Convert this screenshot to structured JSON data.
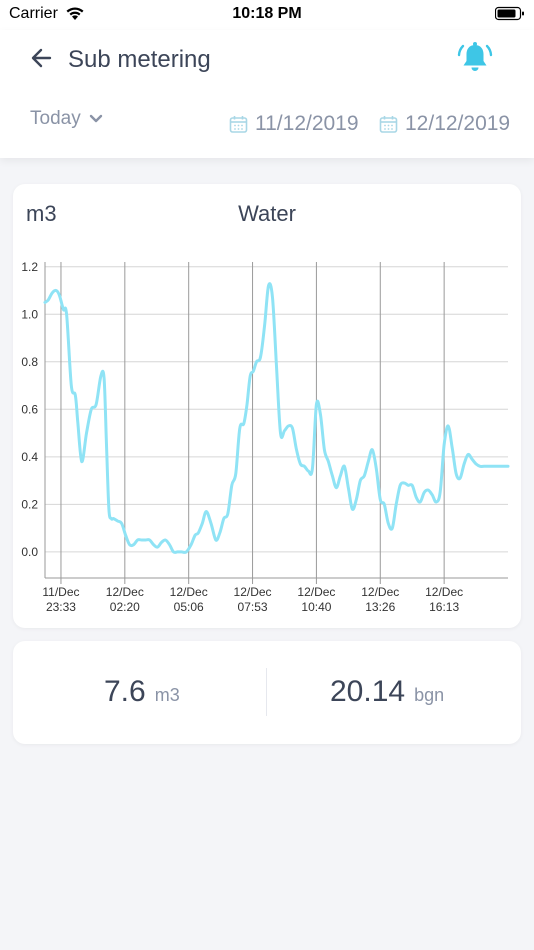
{
  "status_bar": {
    "carrier": "Carrier",
    "time": "10:18 PM"
  },
  "header": {
    "title": "Sub metering",
    "period": "Today",
    "date_from": "11/12/2019",
    "date_to": "12/12/2019",
    "accent_color": "#3ec6e6"
  },
  "chart_card": {
    "unit_label": "m3",
    "title": "Water"
  },
  "chart_data": {
    "type": "line",
    "title": "Water",
    "ylabel": "m3",
    "ylim": [
      -0.11,
      1.22
    ],
    "yticks": [
      "1.2",
      "1.0",
      "0.8",
      "0.6",
      "0.4",
      "0.2",
      "0.0"
    ],
    "ytick_values": [
      1.2,
      1.0,
      0.8,
      0.6,
      0.4,
      0.2,
      0.0
    ],
    "xticks": [
      {
        "line1": "11/Dec",
        "line2": "23:33",
        "t": 1
      },
      {
        "line1": "12/Dec",
        "line2": "02:20",
        "t": 5
      },
      {
        "line1": "12/Dec",
        "line2": "05:06",
        "t": 9
      },
      {
        "line1": "12/Dec",
        "line2": "07:53",
        "t": 13
      },
      {
        "line1": "12/Dec",
        "line2": "10:40",
        "t": 17
      },
      {
        "line1": "12/Dec",
        "line2": "13:26",
        "t": 21
      },
      {
        "line1": "12/Dec",
        "line2": "16:13",
        "t": 25
      }
    ],
    "xlim": [
      0,
      29
    ],
    "series_color": "#8fe3f5",
    "series": [
      {
        "x": [
          0,
          0.2,
          0.45,
          0.7,
          0.9,
          1.15,
          1.35,
          1.65,
          1.9,
          2.05,
          2.3,
          2.6,
          2.9,
          3.2,
          3.5,
          3.7,
          3.85,
          4.0,
          4.15,
          4.3,
          4.55,
          4.8,
          5.05,
          5.3,
          5.55,
          5.8,
          6.05,
          6.3,
          6.55,
          6.8,
          7.05,
          7.3,
          7.55,
          7.8,
          8.05,
          8.3,
          8.55,
          8.85,
          9.15,
          9.4,
          9.6,
          9.85,
          10.1,
          10.4,
          10.7,
          10.95,
          11.2,
          11.45,
          11.7,
          11.95,
          12.2,
          12.45,
          12.65,
          12.85,
          13.05,
          13.25,
          13.5,
          13.75,
          14.0,
          14.25,
          14.5,
          14.75,
          15.0,
          15.25,
          15.5,
          15.75,
          16.0,
          16.25,
          16.5,
          16.75,
          17.0,
          17.25,
          17.5,
          17.75,
          18.0,
          18.25,
          18.5,
          18.75,
          19.0,
          19.25,
          19.5,
          19.75,
          20.0,
          20.25,
          20.5,
          20.75,
          21.0,
          21.25,
          21.5,
          21.75,
          22.0,
          22.25,
          22.5,
          22.75,
          23.0,
          23.25,
          23.5,
          23.75,
          24.0,
          24.25,
          24.5,
          24.75,
          25.0,
          25.25,
          25.5,
          25.75,
          26.0,
          26.25,
          26.5,
          26.75,
          27.0,
          27.25,
          27.5,
          27.75,
          28.0,
          28.25,
          28.5,
          28.75,
          29.0
        ],
        "values": [
          1.05,
          1.06,
          1.09,
          1.1,
          1.08,
          1.02,
          1.0,
          0.7,
          0.66,
          0.55,
          0.38,
          0.5,
          0.6,
          0.62,
          0.74,
          0.73,
          0.45,
          0.18,
          0.14,
          0.14,
          0.13,
          0.12,
          0.07,
          0.03,
          0.03,
          0.05,
          0.05,
          0.05,
          0.05,
          0.03,
          0.02,
          0.04,
          0.05,
          0.03,
          0.0,
          0.0,
          0.0,
          0.0,
          0.03,
          0.07,
          0.08,
          0.12,
          0.17,
          0.12,
          0.05,
          0.08,
          0.14,
          0.16,
          0.28,
          0.33,
          0.52,
          0.54,
          0.62,
          0.74,
          0.76,
          0.8,
          0.82,
          0.95,
          1.12,
          1.07,
          0.78,
          0.5,
          0.51,
          0.53,
          0.52,
          0.43,
          0.37,
          0.36,
          0.34,
          0.35,
          0.62,
          0.58,
          0.43,
          0.38,
          0.32,
          0.27,
          0.32,
          0.36,
          0.27,
          0.18,
          0.22,
          0.3,
          0.32,
          0.38,
          0.43,
          0.35,
          0.22,
          0.2,
          0.12,
          0.1,
          0.2,
          0.28,
          0.29,
          0.28,
          0.28,
          0.23,
          0.21,
          0.25,
          0.26,
          0.24,
          0.21,
          0.25,
          0.45,
          0.53,
          0.44,
          0.33,
          0.31,
          0.37,
          0.41,
          0.39,
          0.37,
          0.36,
          0.36,
          0.36,
          0.36,
          0.36,
          0.36,
          0.36,
          0.36
        ]
      }
    ],
    "grid": true
  },
  "stats": {
    "volume_value": "7.6",
    "volume_unit": "m3",
    "cost_value": "20.14",
    "cost_unit": "bgn"
  }
}
